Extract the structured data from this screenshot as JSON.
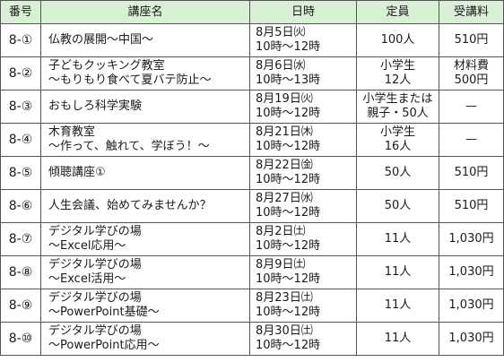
{
  "headers": {
    "number": "番号",
    "course": "講座名",
    "datetime": "日時",
    "capacity": "定員",
    "fee": "受講料"
  },
  "rows": [
    {
      "number": "8-①",
      "name": [
        "仏教の展開～中国～"
      ],
      "date": "8月5日㈫",
      "time": "10時～12時",
      "capacity": [
        "100人"
      ],
      "fee": [
        "510円"
      ]
    },
    {
      "number": "8-②",
      "name": [
        "子どもクッキング教室",
        "～もりもり食べて夏バテ防止～"
      ],
      "date": "8月6日㈬",
      "time": "10時～13時",
      "capacity": [
        "小学生",
        "12人"
      ],
      "fee": [
        "材料費",
        "500円"
      ]
    },
    {
      "number": "8-③",
      "name": [
        "おもしろ科学実験"
      ],
      "date": "8月19日㈫",
      "time": "10時～12時",
      "capacity": [
        "小学生または",
        "親子・50人"
      ],
      "fee": [
        "—"
      ]
    },
    {
      "number": "8-④",
      "name": [
        "木育教室",
        "～作って、触れて、学ぼう！～"
      ],
      "date": "8月21日㈭",
      "time": "10時～12時",
      "capacity": [
        "小学生",
        "16人"
      ],
      "fee": [
        "—"
      ]
    },
    {
      "number": "8-⑤",
      "name": [
        "傾聴講座①"
      ],
      "date": "8月22日㈮",
      "time": "10時～12時",
      "capacity": [
        "50人"
      ],
      "fee": [
        "510円"
      ]
    },
    {
      "number": "8-⑥",
      "name": [
        "人生会議、始めてみませんか？"
      ],
      "date": "8月27日㈬",
      "time": "10時～12時",
      "capacity": [
        "50人"
      ],
      "fee": [
        "510円"
      ]
    },
    {
      "number": "8-⑦",
      "name": [
        "デジタル学びの場",
        "～Excel応用～"
      ],
      "date": "8月2日㈯",
      "time": "10時～12時",
      "capacity": [
        "11人"
      ],
      "fee": [
        "1,030円"
      ]
    },
    {
      "number": "8-⑧",
      "name": [
        "デジタル学びの場",
        "～Excel活用～"
      ],
      "date": "8月9日㈯",
      "time": "10時～12時",
      "capacity": [
        "11人"
      ],
      "fee": [
        "1,030円"
      ]
    },
    {
      "number": "8-⑨",
      "name": [
        "デジタル学びの場",
        "～PowerPoint基礎～"
      ],
      "date": "8月23日㈯",
      "time": "10時～12時",
      "capacity": [
        "11人"
      ],
      "fee": [
        "1,030円"
      ]
    },
    {
      "number": "8-⑩",
      "name": [
        "デジタル学びの場",
        "～PowerPoint応用～"
      ],
      "date": "8月30日㈯",
      "time": "10時～12時",
      "capacity": [
        "11人"
      ],
      "fee": [
        "1,030円"
      ]
    }
  ],
  "colors": {
    "header_bg": "#d9efd6",
    "border": "#555555",
    "text": "#1a1a1a"
  }
}
